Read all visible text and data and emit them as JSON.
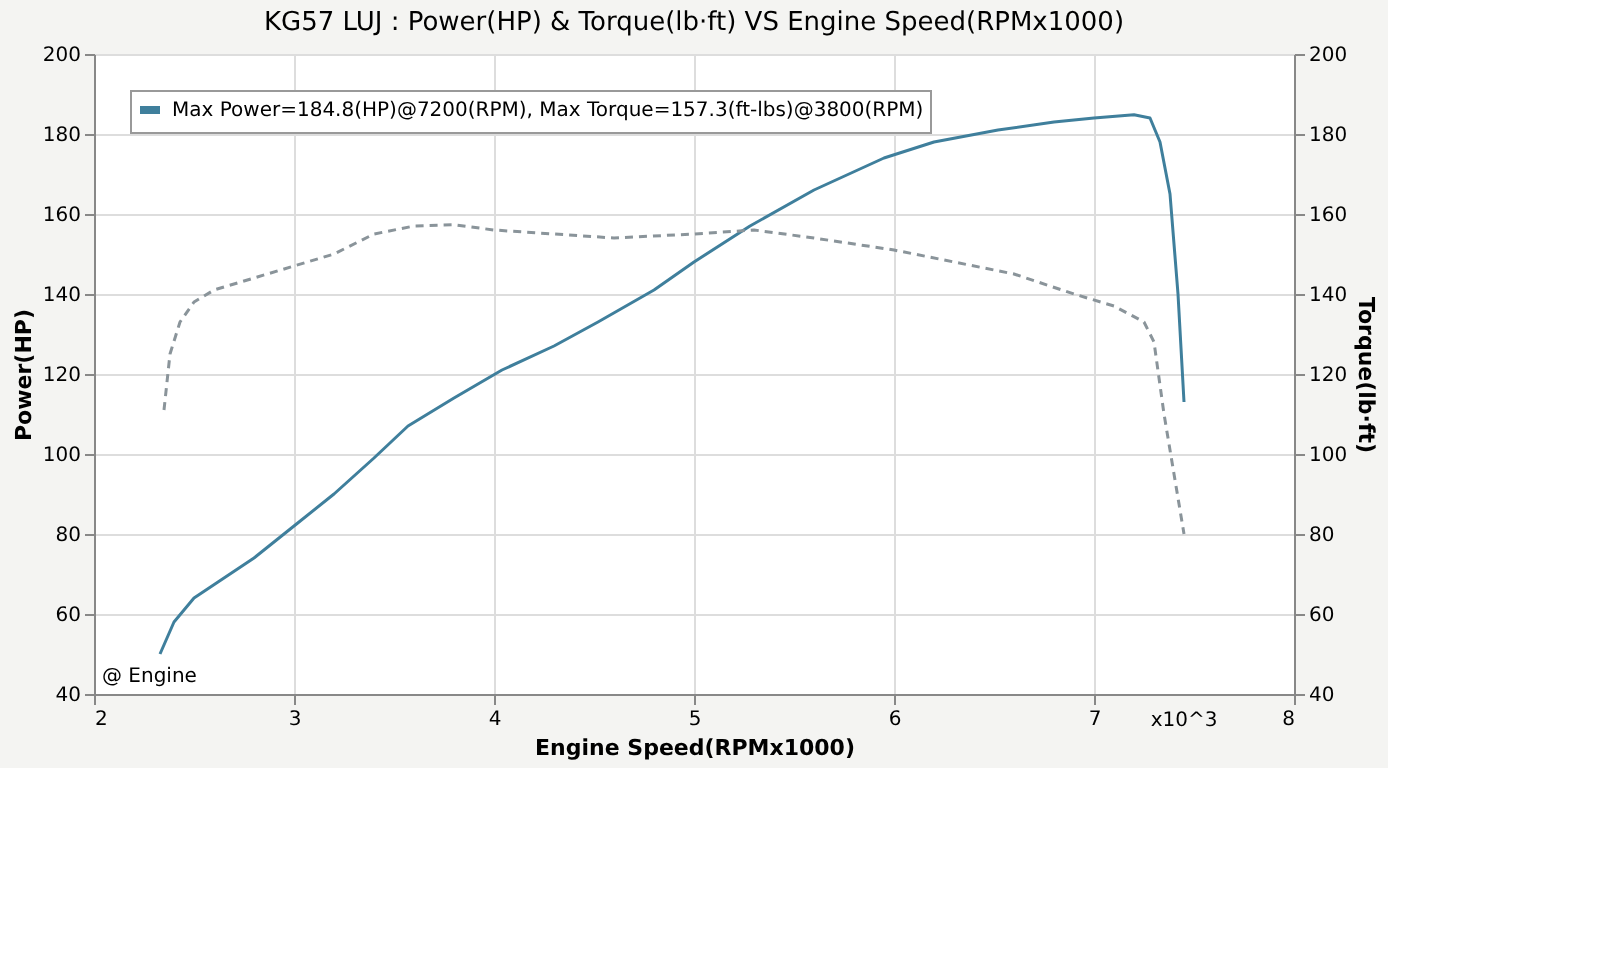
{
  "chart_data": {
    "type": "line",
    "title": "KG57 LUJ : Power(HP) & Torque(lb·ft) VS Engine Speed(RPMx1000)",
    "xlabel": "Engine Speed(RPMx1000)",
    "ylabel": "Power(HP)",
    "y2label": "Torque(lb·ft)",
    "xlim": [
      2,
      8
    ],
    "xticks": [
      2,
      3,
      4,
      5,
      6,
      7,
      8
    ],
    "ylim": [
      40,
      200
    ],
    "yticks": [
      40,
      60,
      80,
      100,
      120,
      140,
      160,
      180,
      200
    ],
    "y2lim": [
      40,
      200
    ],
    "y2ticks": [
      40,
      60,
      80,
      100,
      120,
      140,
      160,
      180,
      200
    ],
    "grid": true,
    "legend": "top left",
    "annotations": [
      "@ Engine",
      "x10^3"
    ],
    "series": [
      {
        "name": "Max Power=184.8(HP)@7200(RPM), Max Torque=157.3(ft-lbs)@3800(RPM)",
        "color": "#3f7f9c",
        "line_style": "solid",
        "x": [
          2.33,
          2.4,
          2.5,
          2.62,
          2.8,
          3.0,
          3.2,
          3.4,
          3.57,
          3.8,
          4.04,
          4.3,
          4.52,
          4.8,
          5.0,
          5.28,
          5.6,
          5.95,
          6.2,
          6.52,
          6.8,
          7.0,
          7.2,
          7.28,
          7.33,
          7.38,
          7.42,
          7.45
        ],
        "values": [
          50,
          58,
          64,
          68,
          74,
          82,
          90,
          99,
          107,
          114,
          121,
          127,
          133,
          141,
          148,
          157,
          166,
          174,
          178,
          181,
          183,
          184,
          184.8,
          184,
          178,
          165,
          140,
          113
        ]
      },
      {
        "color": "#8a949a",
        "axis": "y2",
        "line_style": "dashed",
        "x": [
          2.35,
          2.38,
          2.43,
          2.5,
          2.6,
          2.8,
          3.0,
          3.2,
          3.4,
          3.6,
          3.8,
          4.0,
          4.3,
          4.6,
          5.0,
          5.3,
          5.6,
          6.0,
          6.3,
          6.6,
          6.9,
          7.1,
          7.25,
          7.3,
          7.35,
          7.4,
          7.45
        ],
        "values": [
          111,
          125,
          133,
          138,
          141,
          144,
          147,
          150,
          155,
          157,
          157.3,
          156,
          155,
          154,
          155,
          156,
          154,
          151,
          148,
          145,
          140,
          137,
          133,
          128,
          110,
          95,
          80
        ]
      }
    ]
  }
}
